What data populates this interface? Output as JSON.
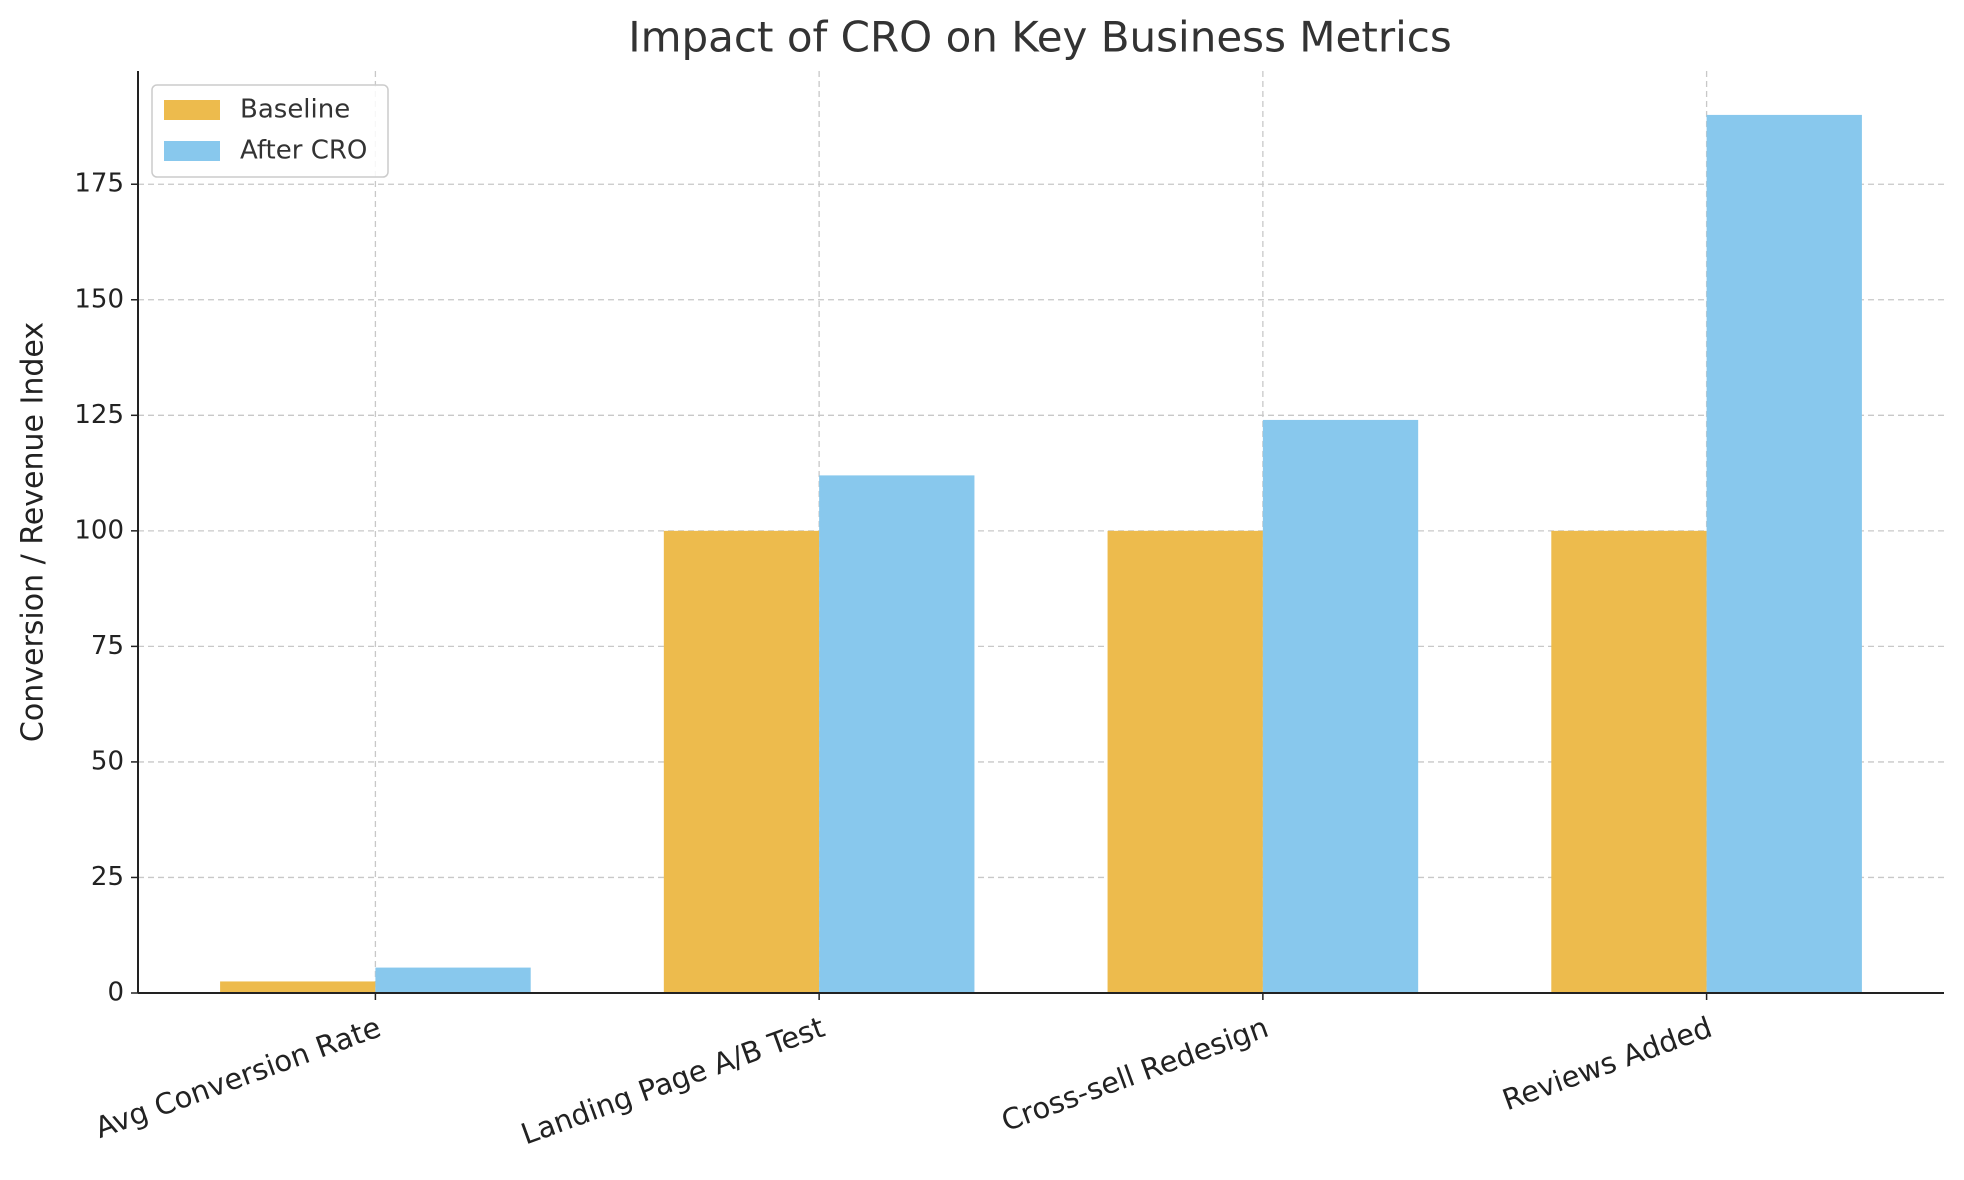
{
  "chart_data": {
    "type": "bar",
    "title": "Impact of CRO on Key Business Metrics",
    "y_label": "Conversion / Revenue Index",
    "categories": [
      "Avg Conversion Rate",
      "Landing Page A/B Test",
      "Cross-sell Redesign",
      "Reviews Added"
    ],
    "series": [
      {
        "name": "Baseline",
        "color": "#edbb4d",
        "values": [
          2.5,
          100,
          100,
          100
        ]
      },
      {
        "name": "After CRO",
        "color": "#88c8ed",
        "values": [
          5.5,
          112,
          124,
          190
        ]
      }
    ],
    "ylim": [
      0,
      199.5
    ],
    "yticks": [
      0,
      25,
      50,
      75,
      100,
      125,
      150,
      175
    ],
    "grid": true,
    "legend": "upper left"
  }
}
